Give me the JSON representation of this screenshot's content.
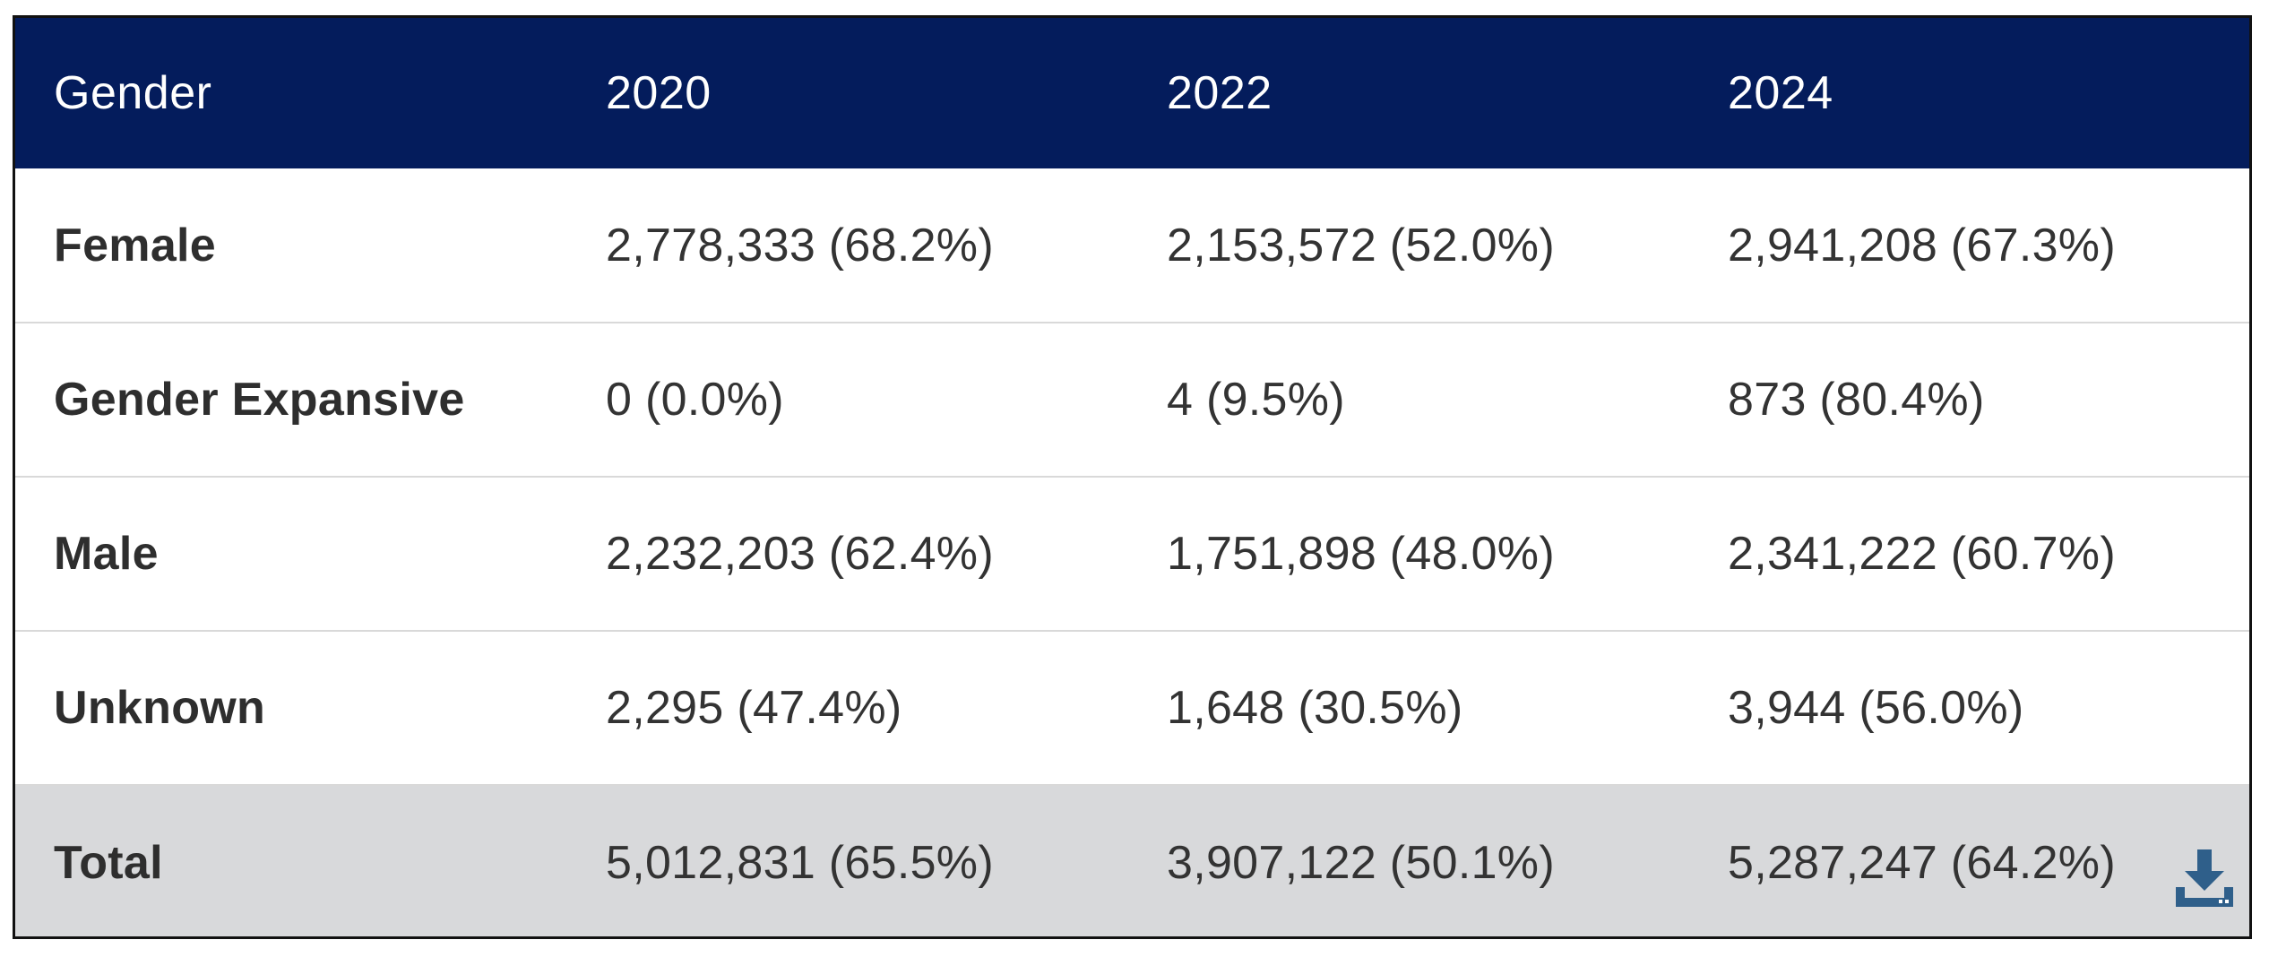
{
  "table": {
    "headers": [
      "Gender",
      "2020",
      "2022",
      "2024"
    ],
    "rows": [
      {
        "label": "Female",
        "cells": [
          "2,778,333 (68.2%)",
          "2,153,572 (52.0%)",
          "2,941,208 (67.3%)"
        ]
      },
      {
        "label": "Gender Expansive",
        "cells": [
          "0 (0.0%)",
          "4 (9.5%)",
          "873 (80.4%)"
        ]
      },
      {
        "label": "Male",
        "cells": [
          "2,232,203 (62.4%)",
          "1,751,898 (48.0%)",
          "2,341,222 (60.7%)"
        ]
      },
      {
        "label": "Unknown",
        "cells": [
          "2,295 (47.4%)",
          "1,648 (30.5%)",
          "3,944 (56.0%)"
        ]
      },
      {
        "label": "Total",
        "cells": [
          "5,012,831 (65.5%)",
          "3,907,122 (50.1%)",
          "5,287,247 (64.2%)"
        ]
      }
    ]
  },
  "icons": {
    "download": "download-icon"
  },
  "colors": {
    "header_bg": "#041c5c",
    "header_text": "#ffffff",
    "total_row_bg": "#d8d9db",
    "download_icon": "#2f5f8a"
  }
}
